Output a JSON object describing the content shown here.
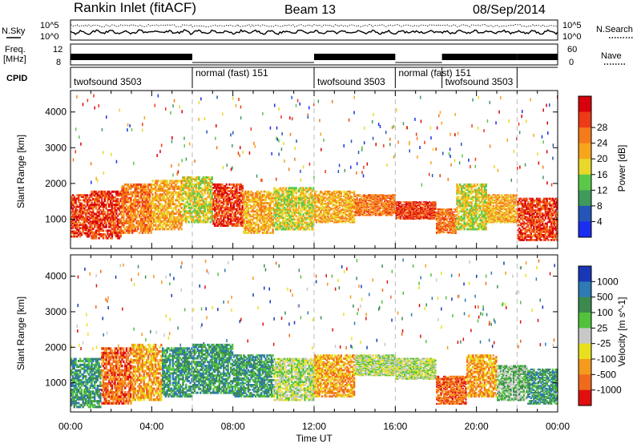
{
  "header": {
    "station": "Rankin Inlet (fitACF)",
    "beam": "Beam 13",
    "date": "08/Sep/2014"
  },
  "top_panel": {
    "left_labels": [
      "N.Sky",
      "Freq.",
      "[MHz]",
      "CPID"
    ],
    "left_ticks_noise": [
      "10^5",
      "10^0"
    ],
    "left_ticks_freq": [
      "12",
      "8"
    ],
    "right_labels": [
      "N.Search",
      "Nave"
    ],
    "right_ticks_noise": [
      "10^5",
      "10^0"
    ],
    "right_ticks_nave": [
      "60",
      "0"
    ],
    "cpid_segments": [
      {
        "label": "twofsound 3503",
        "start": 0.0,
        "end": 6.0,
        "row": "low"
      },
      {
        "label": "normal (fast) 151",
        "start": 6.0,
        "end": 12.0,
        "row": "high"
      },
      {
        "label": "twofsound 3503",
        "start": 12.0,
        "end": 16.0,
        "row": "low"
      },
      {
        "label": "normal (fast) 151",
        "start": 16.0,
        "end": 18.3,
        "row": "high"
      },
      {
        "label": "twofsound 3503",
        "start": 18.3,
        "end": 22.0,
        "row": "low"
      },
      {
        "label": "",
        "start": 22.0,
        "end": 24.0,
        "row": "low"
      }
    ]
  },
  "colors": {
    "power": [
      "#1b2df0",
      "#2555b8",
      "#3f9a5c",
      "#5bc84a",
      "#e8d82a",
      "#f7a51c",
      "#f47b1a",
      "#ee3a17",
      "#d8000c"
    ],
    "velocity": [
      "#1a37b8",
      "#2d7ab4",
      "#3d8a4f",
      "#52c23c",
      "#c8c8c8",
      "#e8e01e",
      "#f59a1c",
      "#f06a1c",
      "#e01010"
    ]
  },
  "chart_data": [
    {
      "type": "heatmap",
      "title": "",
      "xlabel": "",
      "ylabel": "Slant Range [km]",
      "xlim": [
        0,
        24
      ],
      "ylim": [
        180,
        4600
      ],
      "x_ticks": [
        "00:00",
        "04:00",
        "08:00",
        "12:00",
        "16:00",
        "20:00",
        "00:00"
      ],
      "y_ticks": [
        1000,
        2000,
        3000,
        4000
      ],
      "colorbar_label": "Power [dB]",
      "colorbar_ticks": [
        "4",
        "8",
        "12",
        "16",
        "20",
        "24",
        "28"
      ],
      "colorbar_levels": [
        0,
        4,
        8,
        12,
        16,
        20,
        24,
        28,
        32
      ],
      "bands": [
        {
          "x": [
            0.0,
            1.0
          ],
          "y": [
            500,
            1700
          ],
          "level": 7
        },
        {
          "x": [
            1.0,
            2.5
          ],
          "y": [
            450,
            1800
          ],
          "level": 7
        },
        {
          "x": [
            2.5,
            4.0
          ],
          "y": [
            600,
            2000
          ],
          "level": 6
        },
        {
          "x": [
            4.0,
            5.5
          ],
          "y": [
            700,
            2100
          ],
          "level": 5
        },
        {
          "x": [
            5.5,
            7.0
          ],
          "y": [
            900,
            2200
          ],
          "level": 4
        },
        {
          "x": [
            7.0,
            8.5
          ],
          "y": [
            800,
            2000
          ],
          "level": 7
        },
        {
          "x": [
            8.5,
            10.0
          ],
          "y": [
            600,
            1800
          ],
          "level": 5
        },
        {
          "x": [
            10.0,
            12.0
          ],
          "y": [
            700,
            1900
          ],
          "level": 4
        },
        {
          "x": [
            12.0,
            14.0
          ],
          "y": [
            900,
            1800
          ],
          "level": 5
        },
        {
          "x": [
            14.0,
            16.0
          ],
          "y": [
            1100,
            1700
          ],
          "level": 6
        },
        {
          "x": [
            16.0,
            18.0
          ],
          "y": [
            1000,
            1500
          ],
          "level": 7
        },
        {
          "x": [
            18.0,
            19.0
          ],
          "y": [
            600,
            1300
          ],
          "level": 6
        },
        {
          "x": [
            19.0,
            20.5
          ],
          "y": [
            700,
            2000
          ],
          "level": 4
        },
        {
          "x": [
            20.5,
            22.0
          ],
          "y": [
            900,
            1700
          ],
          "level": 5
        },
        {
          "x": [
            22.0,
            24.0
          ],
          "y": [
            400,
            1600
          ],
          "level": 7
        }
      ]
    },
    {
      "type": "heatmap",
      "title": "",
      "xlabel": "Time UT",
      "ylabel": "Slant Range [km]",
      "xlim": [
        0,
        24
      ],
      "ylim": [
        180,
        4600
      ],
      "x_ticks": [
        "00:00",
        "04:00",
        "08:00",
        "12:00",
        "16:00",
        "20:00",
        "00:00"
      ],
      "y_ticks": [
        1000,
        2000,
        3000,
        4000
      ],
      "colorbar_label": "Velocity [m s^-1]",
      "colorbar_ticks": [
        "1000",
        "500",
        "100",
        "25",
        "-25",
        "-100",
        "-500",
        "-1000"
      ],
      "bands": [
        {
          "x": [
            0.0,
            1.5
          ],
          "y": [
            300,
            1700
          ],
          "level": 2
        },
        {
          "x": [
            1.5,
            3.0
          ],
          "y": [
            400,
            2000
          ],
          "level": 7
        },
        {
          "x": [
            3.0,
            4.5
          ],
          "y": [
            500,
            2100
          ],
          "level": 6
        },
        {
          "x": [
            4.5,
            6.0
          ],
          "y": [
            600,
            2000
          ],
          "level": 2
        },
        {
          "x": [
            6.0,
            8.0
          ],
          "y": [
            700,
            2100
          ],
          "level": 2
        },
        {
          "x": [
            8.0,
            10.0
          ],
          "y": [
            600,
            1800
          ],
          "level": 2
        },
        {
          "x": [
            10.0,
            12.0
          ],
          "y": [
            500,
            1700
          ],
          "level": 4
        },
        {
          "x": [
            12.0,
            14.0
          ],
          "y": [
            600,
            1800
          ],
          "level": 6
        },
        {
          "x": [
            14.0,
            16.0
          ],
          "y": [
            1200,
            1800
          ],
          "level": 4
        },
        {
          "x": [
            16.0,
            18.0
          ],
          "y": [
            1100,
            1700
          ],
          "level": 4
        },
        {
          "x": [
            18.0,
            19.5
          ],
          "y": [
            400,
            1200
          ],
          "level": 7
        },
        {
          "x": [
            19.5,
            21.0
          ],
          "y": [
            600,
            1800
          ],
          "level": 6
        },
        {
          "x": [
            21.0,
            22.5
          ],
          "y": [
            500,
            1500
          ],
          "level": 3
        },
        {
          "x": [
            22.5,
            24.0
          ],
          "y": [
            400,
            1400
          ],
          "level": 2
        }
      ]
    }
  ]
}
